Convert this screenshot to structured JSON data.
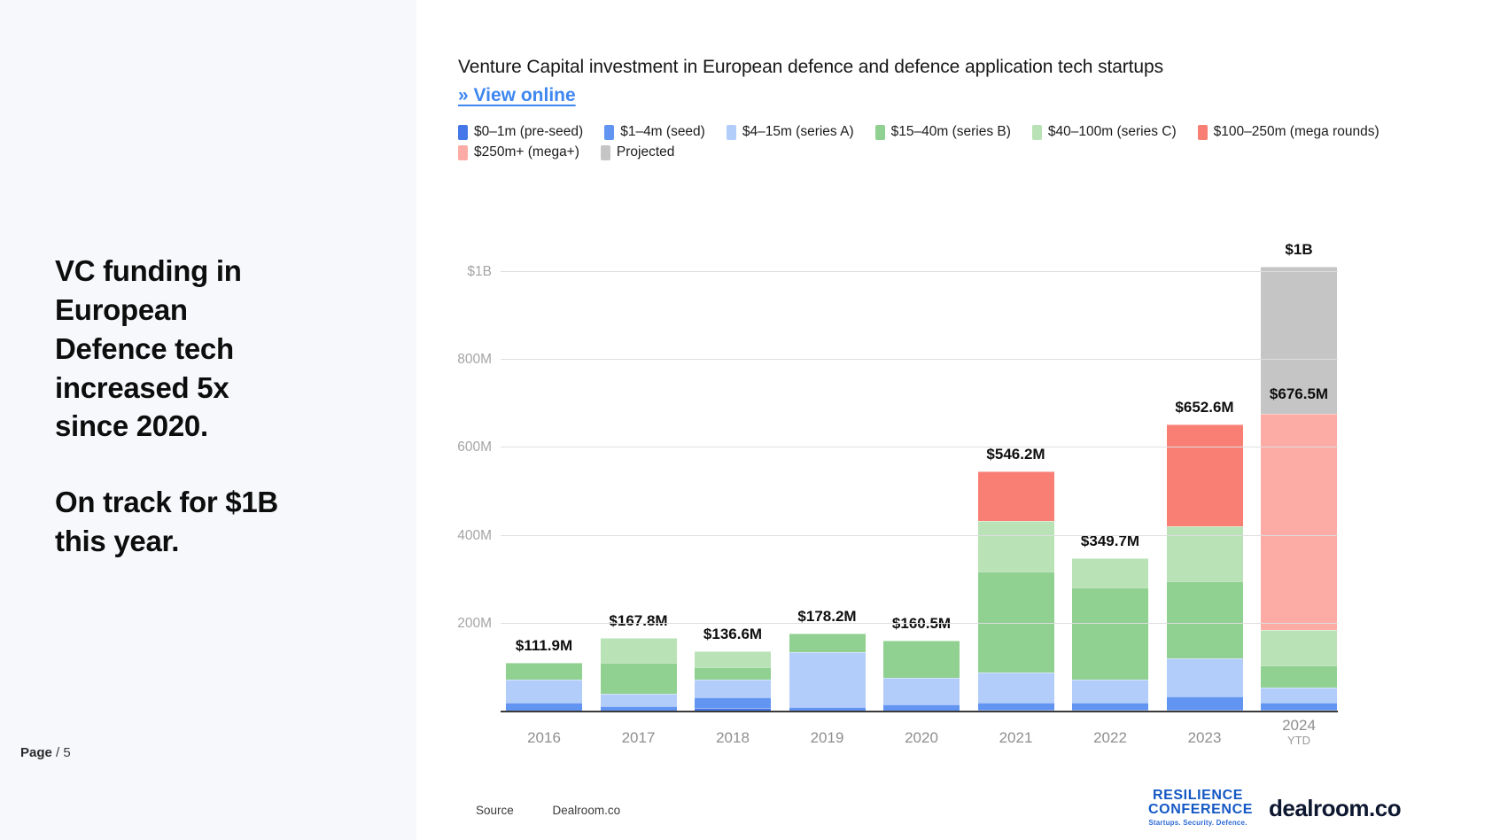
{
  "sidebar": {
    "headline_1": "VC funding in\nEuropean\nDefence tech\nincreased 5x\nsince 2020.",
    "headline_2": "On track for $1B\nthis year.",
    "page_label": "Page",
    "page_number": "/ 5"
  },
  "header": {
    "title": "Venture Capital investment in European defence and defence application tech startups",
    "link_label": "»  View online"
  },
  "footer": {
    "source_label": "Source",
    "source_value": "Dealroom.co",
    "logo_resilience_line1": "RESILIENCE",
    "logo_resilience_line2": "CONFERENCE",
    "logo_resilience_tagline": "Startups. Security. Defence.",
    "logo_dealroom": "dealroom.co"
  },
  "chart_data": {
    "type": "bar",
    "stacked": true,
    "title": "Venture Capital investment in European defence and defence application tech startups",
    "categories": [
      "2016",
      "2017",
      "2018",
      "2019",
      "2020",
      "2021",
      "2022",
      "2023",
      "2024"
    ],
    "category_sub": [
      "",
      "",
      "",
      "",
      "",
      "",
      "",
      "",
      "YTD"
    ],
    "totals": [
      111.9,
      167.8,
      136.6,
      178.2,
      160.5,
      546.2,
      349.7,
      652.6,
      676.5
    ],
    "totals_labels": [
      "$111.9M",
      "$167.8M",
      "$136.6M",
      "$178.2M",
      "$160.5M",
      "$546.2M",
      "$349.7M",
      "$652.6M",
      "$676.5M"
    ],
    "projected_total_label": "$1B",
    "y_ticks": [
      "200M",
      "400M",
      "600M",
      "800M",
      "$1B"
    ],
    "y_tick_values": [
      200,
      400,
      600,
      800,
      1000
    ],
    "ylim": [
      0,
      1100
    ],
    "grid": true,
    "legend_position": "top",
    "series": [
      {
        "name": "$0–1m (pre-seed)",
        "color": "#4677E8",
        "values": [
          3,
          3,
          8,
          3,
          3,
          5,
          4,
          5,
          5
        ]
      },
      {
        "name": "$1–4m (seed)",
        "color": "#6295F2",
        "values": [
          18,
          10,
          25,
          8,
          13,
          16,
          16,
          29,
          15
        ]
      },
      {
        "name": "$4–15m (series A)",
        "color": "#B3CDFA",
        "values": [
          52,
          28,
          40,
          124,
          61,
          67,
          53,
          88,
          35
        ]
      },
      {
        "name": "$15–40m (series B)",
        "color": "#90D090",
        "values": [
          38.9,
          70,
          27,
          43.2,
          83.5,
          230,
          210,
          175,
          50
        ]
      },
      {
        "name": "$40–100m (series C)",
        "color": "#B9E2B6",
        "values": [
          0,
          56.8,
          36.6,
          0,
          0,
          116,
          66.7,
          125,
          81
        ]
      },
      {
        "name": "$100–250m (mega rounds)",
        "color": "#F97F75",
        "values": [
          0,
          0,
          0,
          0,
          0,
          112.2,
          0,
          230.6,
          0
        ]
      },
      {
        "name": "$250m+ (mega+)",
        "color": "#FCACA4",
        "values": [
          0,
          0,
          0,
          0,
          0,
          0,
          0,
          0,
          490.5
        ]
      },
      {
        "name": "Projected",
        "color": "#C5C5C5",
        "values": [
          0,
          0,
          0,
          0,
          0,
          0,
          0,
          0,
          335
        ]
      }
    ],
    "legend_rows": [
      [
        0,
        1,
        2,
        3,
        4,
        5
      ],
      [
        6,
        7
      ]
    ]
  }
}
